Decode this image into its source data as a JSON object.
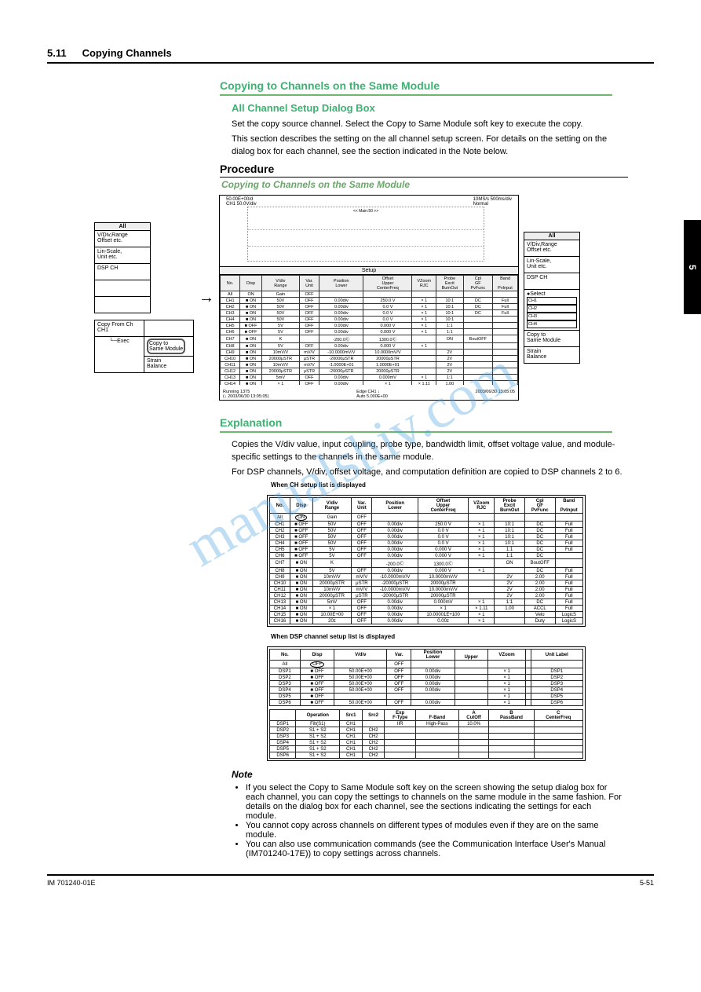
{
  "header": {
    "section_num": "5.11",
    "section_title": "Copying Channels"
  },
  "side_tab": "5",
  "headings": {
    "green1": "Copying to Channels on the Same Module",
    "sub1": "All Channel Setup Dialog Box",
    "proc": "Procedure",
    "proc_title": "Copying to Channels on the Same Module",
    "green2": "Explanation",
    "note_title": "Note"
  },
  "body": {
    "p1": "Set the copy source channel. Select the Copy to Same Module soft key to execute the copy.",
    "p2": "This section describes the setting on the all channel setup screen. For details on the setting on the dialog box for each channel, see the section indicated in the Note below.",
    "expl1": "Copies the V/div value, input coupling, probe type, bandwidth limit, offset voltage value, and module-specific settings to the channels in the same module.",
    "expl2": "For DSP channels, V/div, offset voltage, and computation definition are copied to DSP channels 2 to 6."
  },
  "notes": {
    "n1": "If you select the Copy to Same Module soft key on the screen showing the setup dialog box for each channel, you can copy the settings to channels on the same module in the same fashion. For details on the dialog box for each channel, see the sections indicating the settings for each module.",
    "n2": "You cannot copy across channels on different types of modules even if they are on the same module.",
    "n3": "You can also use communication commands (see the Communication Interface User's Manual (IM701240-17E)) to copy settings across channels."
  },
  "menu_left": {
    "title": "All",
    "items": [
      "V/Div,Range\nOffset etc.",
      "Lin-Scale,\nUnit etc.",
      "DSP CH",
      "",
      "",
      ""
    ],
    "copy_from_label": "Copy From Ch\nCH1",
    "exec": "Exec",
    "copy_to": "Copy to\nSame Module",
    "strain": "Strain\nBalance"
  },
  "menu_right": {
    "title": "All",
    "items": [
      "V/Div,Range\nOffset etc.",
      "Lin-Scale,\nUnit etc.",
      "DSP CH",
      "",
      ""
    ],
    "select_label": "●Select",
    "select_items": [
      "CH1",
      "CH2",
      "CH3",
      "CH4"
    ],
    "copy_to": "Copy to\nSame Module",
    "strain": "Strain\nBalance"
  },
  "screenshot": {
    "top_left": "50.00E+00/d\nCH1   50.0V/div",
    "top_right": "10MS/s 500ms/div\nNormal",
    "setup_label": "Setup",
    "status_left": "Running       1375\n(↓ 2003/06/30 13:05:05)",
    "status_mid": "Edge CH1   ↓\nAuto   5.000E+00",
    "status_right": "2003/06/30 13:05:05",
    "main_desc": "<< Main:50 >>"
  },
  "setup_table": {
    "headers": [
      "No.",
      "Disp",
      "V/div\nRange",
      "Var.\nUnit",
      "Position\nLower",
      "Offset\nUpper\nCenterFreq",
      "VZoom\nRJC",
      "Probe\nExcit\nBurnOut",
      "Cpl\nGF\nPvFunc",
      "Band\n\nPvInput"
    ],
    "all_row": [
      "All",
      "ON",
      "Gain",
      "OFF",
      "",
      "",
      "",
      "",
      "",
      ""
    ],
    "rows": [
      [
        "CH1",
        "■ ON",
        "50V",
        "OFF",
        "0.00div",
        "250.0 V",
        "× 1",
        "10:1",
        "DC",
        "Full"
      ],
      [
        "CH2",
        "■ ON",
        "50V",
        "OFF",
        "0.00div",
        "0.0 V",
        "× 1",
        "10:1",
        "DC",
        "Full"
      ],
      [
        "CH3",
        "■ ON",
        "50V",
        "OFF",
        "0.00div",
        "0.0 V",
        "× 1",
        "10:1",
        "DC",
        "Full"
      ],
      [
        "CH4",
        "■ ON",
        "50V",
        "OFF",
        "0.00div",
        "0.0 V",
        "× 1",
        "10:1",
        "",
        ""
      ],
      [
        "CH5",
        "■ OFF",
        "5V",
        "OFF",
        "0.00div",
        "0.000 V",
        "× 1",
        "1:1",
        "",
        ""
      ],
      [
        "CH6",
        "■ OFF",
        "5V",
        "OFF",
        "0.00div",
        "0.000 V",
        "× 1",
        "1:1",
        "",
        ""
      ],
      [
        "CH7",
        "■ ON",
        "K",
        "",
        "-200.0Ⓒ",
        "1300.0Ⓒ",
        "",
        "ON",
        "BoutOFF",
        ""
      ],
      [
        "CH8",
        "■ ON",
        "5V",
        "OFF",
        "0.00div",
        "0.000 V",
        "× 1",
        "",
        "",
        ""
      ],
      [
        "CH9",
        "■ ON",
        "10mV/V",
        "mV/V",
        "-10.0000mV/V",
        "10.0000mV/V",
        "",
        "2V",
        "",
        ""
      ],
      [
        "CH10",
        "■ ON",
        "20000μSTR",
        "μSTR",
        "-20000μSTR",
        "20000μSTR",
        "",
        "2V",
        "",
        ""
      ],
      [
        "CH11",
        "■ ON",
        "10mV/V",
        "mV/V",
        "-1.0000E+01",
        "1.0000E+01",
        "",
        "2V",
        "",
        ""
      ],
      [
        "CH12",
        "■ ON",
        "20000μSTR",
        "μSTR",
        "-20000μSTR",
        "20000μSTR",
        "",
        "2V",
        "",
        ""
      ],
      [
        "CH13",
        "■ ON",
        "5mV",
        "OFF",
        "0.00div",
        "0.000mV",
        "× 1",
        "1:1",
        "",
        ""
      ],
      [
        "CH14",
        "■ ON",
        "× 1",
        "OFF",
        "0.00div",
        "× 1",
        "× 1.11",
        "1.00",
        "",
        ""
      ],
      [
        "CH15",
        "■ ON",
        "10.00E+00",
        "OFF",
        "0.00div",
        "10.00001E+100",
        "× 1",
        "",
        "",
        ""
      ],
      [
        "CH16",
        "■ ON",
        "20z",
        "OFF",
        "0.00div",
        "0.00z",
        "× 1",
        "",
        "Duty",
        "LogicS"
      ]
    ]
  },
  "ch_table": {
    "caption": "When CH setup list is displayed",
    "headers": [
      "No.",
      "Disp",
      "V/div\nRange",
      "Var.\nUnit",
      "Position\nLower",
      "Offset\nUpper\nCenterFreq",
      "VZoom\nRJC",
      "Probe\nExcit\nBurnOut",
      "Cpl\nGF\nPvFunc",
      "Band\n\nPvInput"
    ],
    "all_row": [
      "All",
      "ON",
      "Gain",
      "OFF",
      "",
      "",
      "",
      "",
      "",
      ""
    ],
    "rows": [
      [
        "CH1",
        "■ OFF",
        "50V",
        "OFF",
        "0.00div",
        "250.0 V",
        "× 1",
        "10:1",
        "DC",
        "Full"
      ],
      [
        "CH2",
        "■ OFF",
        "50V",
        "OFF",
        "0.00div",
        "0.0 V",
        "× 1",
        "10:1",
        "DC",
        "Full"
      ],
      [
        "CH3",
        "■ OFF",
        "50V",
        "OFF",
        "0.00div",
        "0.0 V",
        "× 1",
        "10:1",
        "DC",
        "Full"
      ],
      [
        "CH4",
        "■ OFF",
        "50V",
        "OFF",
        "0.00div",
        "0.0 V",
        "× 1",
        "10:1",
        "DC",
        "Full"
      ],
      [
        "CH5",
        "■ OFF",
        "5V",
        "OFF",
        "0.00div",
        "0.000 V",
        "× 1",
        "1:1",
        "DC",
        "Full"
      ],
      [
        "CH6",
        "■ OFF",
        "5V",
        "OFF",
        "0.00div",
        "0.000 V",
        "× 1",
        "1:1",
        "DC",
        ""
      ],
      [
        "CH7",
        "■ ON",
        "K",
        "",
        "-200.0Ⓒ",
        "1300.0Ⓒ",
        "",
        "ON",
        "BoutOFF",
        ""
      ],
      [
        "CH8",
        "■ ON",
        "5V",
        "OFF",
        "0.00div",
        "0.000 V",
        "× 1",
        "",
        "DC",
        "Full"
      ],
      [
        "CH9",
        "■ ON",
        "10mV/V",
        "mV/V",
        "-10.0000mV/V",
        "10.0000mV/V",
        "",
        "2V",
        "2.00",
        "Full"
      ],
      [
        "CH10",
        "■ ON",
        "20000μSTR",
        "μSTR",
        "-20000μSTR",
        "20000μSTR",
        "",
        "2V",
        "2.00",
        "Full"
      ],
      [
        "CH11",
        "■ ON",
        "10mV/V",
        "mV/V",
        "-10.0000mV/V",
        "10.0000mV/V",
        "",
        "2V",
        "2.00",
        "Full"
      ],
      [
        "CH12",
        "■ ON",
        "20000μSTR",
        "μSTR",
        "-20000μSTR",
        "20000μSTR",
        "",
        "2V",
        "2.00",
        "Full"
      ],
      [
        "CH13",
        "■ ON",
        "5mV",
        "OFF",
        "0.00div",
        "0.000mV",
        "× 1",
        "1:1",
        "DC",
        "Full"
      ],
      [
        "CH14",
        "■ ON",
        "× 1",
        "OFF",
        "0.00div",
        "× 1",
        "× 1.11",
        "1.00",
        "ACCL",
        "Full"
      ],
      [
        "CH15",
        "■ ON",
        "10.00E+00",
        "OFF",
        "0.00div",
        "10.00001E+100",
        "× 1",
        "",
        "Velo",
        "LogicS"
      ],
      [
        "CH16",
        "■ ON",
        "20z",
        "OFF",
        "0.00div",
        "0.00z",
        "× 1",
        "",
        "Duty",
        "LogicS"
      ]
    ]
  },
  "dsp_table": {
    "caption": "When DSP channel setup list is displayed",
    "top_headers": [
      "No.",
      "Disp",
      "V/div",
      "Var.",
      "Position\nLower",
      "\nUpper",
      "VZoom",
      "",
      "Unit Label"
    ],
    "all_row": [
      "All",
      "OFF",
      "",
      "OFF",
      "",
      "",
      "",
      "",
      ""
    ],
    "top_rows": [
      [
        "DSP1",
        "■ OFF",
        "50.00E+00",
        "OFF",
        "0.00div",
        "",
        "× 1",
        "",
        "DSP1"
      ],
      [
        "DSP2",
        "■ OFF",
        "50.00E+00",
        "OFF",
        "0.00div",
        "",
        "× 1",
        "",
        "DSP2"
      ],
      [
        "DSP3",
        "■ OFF",
        "50.00E+00",
        "OFF",
        "0.00div",
        "",
        "× 1",
        "",
        "DSP3"
      ],
      [
        "DSP4",
        "■ OFF",
        "50.00E+00",
        "OFF",
        "0.00div",
        "",
        "× 1",
        "",
        "DSP4"
      ],
      [
        "DSP5",
        "■ OFF",
        "",
        "",
        "",
        "",
        "× 1",
        "",
        "DSP5"
      ],
      [
        "DSP6",
        "■ OFF",
        "50.00E+00",
        "OFF",
        "0.00div",
        "",
        "× 1",
        "",
        "DSP6"
      ]
    ],
    "op_headers": [
      "",
      "Operation",
      "Src1",
      "Src2",
      "Exp\nF-Type",
      "\nF-Band",
      "A\nCutOff",
      "B\nPassBand",
      "C\nCenterFreq"
    ],
    "op_rows": [
      [
        "DSP1",
        "Filt(S1)",
        "CH1",
        "",
        "IIR",
        "High-Pass",
        "10.0%",
        "",
        ""
      ],
      [
        "DSP2",
        "S1 + S2",
        "CH1",
        "CH2",
        "",
        "",
        "",
        "",
        ""
      ],
      [
        "DSP3",
        "S1 + S2",
        "CH1",
        "CH2",
        "",
        "",
        "",
        "",
        ""
      ],
      [
        "DSP4",
        "S1 + S2",
        "CH1",
        "CH2",
        "",
        "",
        "",
        "",
        ""
      ],
      [
        "DSP5",
        "S1 + S2",
        "CH1",
        "CH2",
        "",
        "",
        "",
        "",
        ""
      ],
      [
        "DSP6",
        "S1 + S2",
        "CH1",
        "CH2",
        "",
        "",
        "",
        "",
        ""
      ]
    ]
  },
  "footer": {
    "manual": "IM 701240-01E",
    "page": "5-51"
  }
}
